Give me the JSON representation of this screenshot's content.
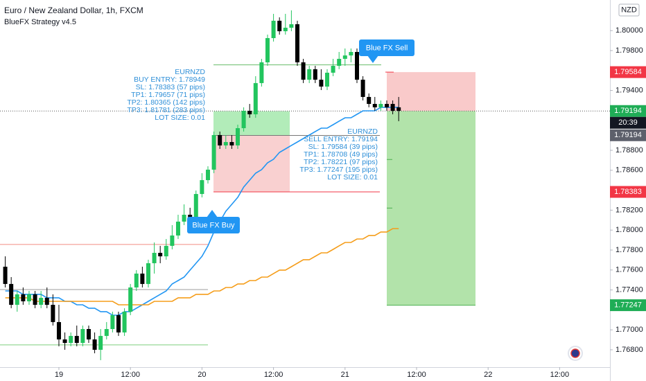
{
  "chart_data": {
    "type": "candlestick",
    "title": "Euro / New Zealand Dollar, 1h, FXCM",
    "subtitle": "BlueFX Strategy v4.5",
    "currency": "NZD",
    "up_color": "#22c55e",
    "down_color": "#000000",
    "x": [
      -9,
      -8,
      -7,
      -6,
      -5,
      -4,
      -3,
      -2,
      -1,
      0,
      1,
      2,
      3,
      4,
      5,
      6,
      7,
      8,
      9,
      10,
      11,
      12,
      13,
      14,
      15,
      16,
      17,
      18,
      19,
      20,
      21,
      22,
      23,
      24,
      25,
      26,
      27,
      28,
      29,
      30,
      31,
      32,
      33,
      34,
      35,
      36,
      37,
      38,
      39,
      40,
      41,
      42,
      43,
      44,
      45,
      46,
      47,
      48,
      49,
      50,
      51,
      52,
      53,
      54,
      55,
      56,
      57
    ],
    "open": [
      1.77633,
      1.7746,
      1.77251,
      1.77356,
      1.77286,
      1.77356,
      1.77251,
      1.77321,
      1.77251,
      1.77078,
      1.76904,
      1.76869,
      1.76939,
      1.76869,
      1.77008,
      1.76904,
      1.768,
      1.76939,
      1.77008,
      1.77147,
      1.76974,
      1.77182,
      1.77425,
      1.77564,
      1.7746,
      1.77668,
      1.77772,
      1.77737,
      1.77842,
      1.77946,
      1.78085,
      1.78154,
      1.78119,
      1.78362,
      1.78501,
      1.78606,
      1.78953,
      1.78849,
      1.78883,
      1.78849,
      1.79022,
      1.79196,
      1.79161,
      1.79474,
      1.79682,
      1.79925,
      1.80099,
      1.79994,
      1.80029,
      1.80064,
      1.79682,
      1.79508,
      1.79613,
      1.79508,
      1.79439,
      1.79578,
      1.79647,
      1.79717,
      1.79751,
      1.79786,
      1.79508,
      1.79335,
      1.79265,
      1.79231,
      1.79265,
      1.79265,
      1.79231
    ],
    "high": [
      1.77737,
      1.77529,
      1.7739,
      1.77425,
      1.7739,
      1.7739,
      1.7739,
      1.77425,
      1.77356,
      1.77251,
      1.76974,
      1.76974,
      1.77043,
      1.77043,
      1.77043,
      1.76974,
      1.77008,
      1.77078,
      1.77182,
      1.77182,
      1.77217,
      1.7746,
      1.77599,
      1.77633,
      1.77703,
      1.77876,
      1.77842,
      1.77911,
      1.7805,
      1.78154,
      1.78258,
      1.78224,
      1.78397,
      1.78571,
      1.7864,
      1.78988,
      1.78988,
      1.78953,
      1.78953,
      1.79057,
      1.79231,
      1.79265,
      1.79543,
      1.79717,
      1.7996,
      1.80168,
      1.80133,
      1.80168,
      1.80203,
      1.80099,
      1.79717,
      1.79647,
      1.79647,
      1.79613,
      1.79613,
      1.79717,
      1.79786,
      1.79821,
      1.79821,
      1.79821,
      1.79543,
      1.7937,
      1.79335,
      1.793,
      1.793,
      1.793,
      1.79335
    ],
    "low": [
      1.77425,
      1.77217,
      1.77182,
      1.77251,
      1.77251,
      1.77217,
      1.77217,
      1.77217,
      1.77043,
      1.76835,
      1.768,
      1.76835,
      1.76835,
      1.76835,
      1.76869,
      1.76765,
      1.76696,
      1.76904,
      1.76974,
      1.76939,
      1.76939,
      1.77147,
      1.7739,
      1.77425,
      1.77425,
      1.77564,
      1.77668,
      1.77703,
      1.77807,
      1.77911,
      1.7805,
      1.7805,
      1.78085,
      1.78328,
      1.78467,
      1.78571,
      1.78814,
      1.78814,
      1.78814,
      1.78814,
      1.78988,
      1.79126,
      1.79126,
      1.79439,
      1.79647,
      1.7989,
      1.7996,
      1.7996,
      1.79994,
      1.79647,
      1.79474,
      1.79474,
      1.79474,
      1.79404,
      1.79404,
      1.79543,
      1.79613,
      1.79647,
      1.79682,
      1.79474,
      1.793,
      1.79231,
      1.79196,
      1.79196,
      1.79196,
      1.79161,
      1.79092
    ],
    "close": [
      1.7746,
      1.77251,
      1.77356,
      1.77286,
      1.77356,
      1.77251,
      1.77321,
      1.77251,
      1.77078,
      1.76904,
      1.76869,
      1.76939,
      1.76869,
      1.77008,
      1.76904,
      1.768,
      1.76939,
      1.77008,
      1.77147,
      1.76974,
      1.77182,
      1.77425,
      1.77564,
      1.7746,
      1.77668,
      1.77772,
      1.77737,
      1.77842,
      1.77946,
      1.78085,
      1.78154,
      1.78119,
      1.78362,
      1.78501,
      1.78606,
      1.78953,
      1.78849,
      1.78883,
      1.78849,
      1.79022,
      1.79196,
      1.79161,
      1.79474,
      1.79682,
      1.79925,
      1.80099,
      1.79994,
      1.80029,
      1.80064,
      1.79682,
      1.79508,
      1.79613,
      1.79508,
      1.79439,
      1.79578,
      1.79647,
      1.79717,
      1.79751,
      1.79786,
      1.79508,
      1.79335,
      1.79265,
      1.79231,
      1.79265,
      1.79231,
      1.79196,
      1.79196
    ],
    "lines": [
      {
        "color": "#2196f3",
        "values": [
          1.7739,
          1.7739,
          1.7739,
          1.77356,
          1.77356,
          1.77356,
          1.77356,
          1.77321,
          1.77321,
          1.77321,
          1.77286,
          1.77286,
          1.77251,
          1.77251,
          1.77217,
          1.77217,
          1.77182,
          1.77182,
          1.77147,
          1.77147,
          1.77182,
          1.77182,
          1.77217,
          1.77251,
          1.77286,
          1.77321,
          1.77356,
          1.7739,
          1.7746,
          1.77494,
          1.77529,
          1.77599,
          1.77668,
          1.77737,
          1.77842,
          1.77981,
          1.78085,
          1.78189,
          1.78258,
          1.78328,
          1.78432,
          1.78501,
          1.78571,
          1.78606,
          1.78675,
          1.7871,
          1.78779,
          1.78814,
          1.78849,
          1.78883,
          1.78918,
          1.78953,
          1.78988,
          1.79022,
          1.79022,
          1.79057,
          1.79092,
          1.79126,
          1.79126,
          1.79161,
          1.79196,
          1.79196,
          1.79196,
          1.79231,
          1.79231,
          1.79231,
          1.79231
        ]
      },
      {
        "color": "#f59d1a",
        "values": [
          1.77321,
          1.77321,
          1.77321,
          1.77321,
          1.77321,
          1.77286,
          1.77286,
          1.77286,
          1.77286,
          1.77286,
          1.77286,
          1.77286,
          1.77286,
          1.77286,
          1.77286,
          1.77286,
          1.77286,
          1.77286,
          1.77286,
          1.77251,
          1.77251,
          1.77251,
          1.77251,
          1.77251,
          1.77251,
          1.77286,
          1.77286,
          1.77286,
          1.77286,
          1.77321,
          1.77321,
          1.77321,
          1.77356,
          1.77356,
          1.77356,
          1.7739,
          1.7739,
          1.77425,
          1.77425,
          1.7746,
          1.7746,
          1.77494,
          1.77494,
          1.77529,
          1.77529,
          1.77564,
          1.77599,
          1.77599,
          1.77633,
          1.77668,
          1.77703,
          1.77703,
          1.77737,
          1.77772,
          1.77772,
          1.77807,
          1.77842,
          1.77876,
          1.77876,
          1.77911,
          1.77911,
          1.77946,
          1.77946,
          1.77981,
          1.77981,
          1.78015,
          1.78015
        ]
      }
    ],
    "levels": [
      {
        "value": 1.77856,
        "color": "#f28b82"
      },
      {
        "value": 1.77404,
        "color": "#9e9e9e"
      },
      {
        "value": 1.76849,
        "color": "#7ccf7c"
      }
    ],
    "buy_trade": {
      "entry": 1.78949,
      "sl": 1.78383,
      "tp1": 1.79657
    },
    "sell_trade": {
      "entry": 1.79194,
      "sl": 1.79584,
      "tp1": 1.78708,
      "tp2": 1.78221,
      "tp3": 1.77247
    },
    "annotations": {
      "buy_signal": "Blue FX Buy",
      "sell_signal": "Blue FX Sell",
      "buy_info": [
        "EURNZD",
        "BUY ENTRY: 1.78949",
        "SL: 1.78383 (57 pips)",
        "TP1: 1.79657 (71 pips)",
        "TP2: 1.80365 (142 pips)",
        "TP3: 1.81781 (283 pips)",
        "LOT SIZE: 0.01"
      ],
      "sell_info": [
        "EURNZD",
        "SELL ENTRY: 1.79194",
        "SL: 1.79584 (39 pips)",
        "TP1: 1.78708 (49 pips)",
        "TP2: 1.78221 (97 pips)",
        "TP3: 1.77247 (195 pips)",
        "LOT SIZE: 0.01"
      ]
    },
    "price_labels": [
      {
        "value": 1.79584,
        "color": "#f23645"
      },
      {
        "value": 1.79194,
        "color": "#1fad56"
      },
      {
        "value": 1.79194,
        "color": "#5d606b",
        "countdown": "20:39"
      },
      {
        "value": 1.78383,
        "color": "#f23645"
      },
      {
        "value": 1.77247,
        "color": "#1fad56"
      }
    ],
    "xlim": [
      -9.88,
      92.44
    ],
    "xticks": [
      {
        "value": 0,
        "label": "19"
      },
      {
        "value": 12,
        "label": "12:00"
      },
      {
        "value": 24,
        "label": "20"
      },
      {
        "value": 36,
        "label": "12:00"
      },
      {
        "value": 48,
        "label": "21"
      },
      {
        "value": 60,
        "label": "12:00"
      },
      {
        "value": 72,
        "label": "22"
      },
      {
        "value": 84,
        "label": "12:00"
      }
    ],
    "ylim": [
      1.76626,
      1.80307
    ],
    "yticks": [
      {
        "value": 1.768,
        "label": "1.76800"
      },
      {
        "value": 1.77,
        "label": "1.77000"
      },
      {
        "value": 1.774,
        "label": "1.77400"
      },
      {
        "value": 1.776,
        "label": "1.77600"
      },
      {
        "value": 1.778,
        "label": "1.77800"
      },
      {
        "value": 1.78,
        "label": "1.78000"
      },
      {
        "value": 1.782,
        "label": "1.78200"
      },
      {
        "value": 1.786,
        "label": "1.78600"
      },
      {
        "value": 1.788,
        "label": "1.78800"
      },
      {
        "value": 1.794,
        "label": "1.79400"
      },
      {
        "value": 1.798,
        "label": "1.79800"
      },
      {
        "value": 1.8,
        "label": "1.80000"
      }
    ]
  }
}
